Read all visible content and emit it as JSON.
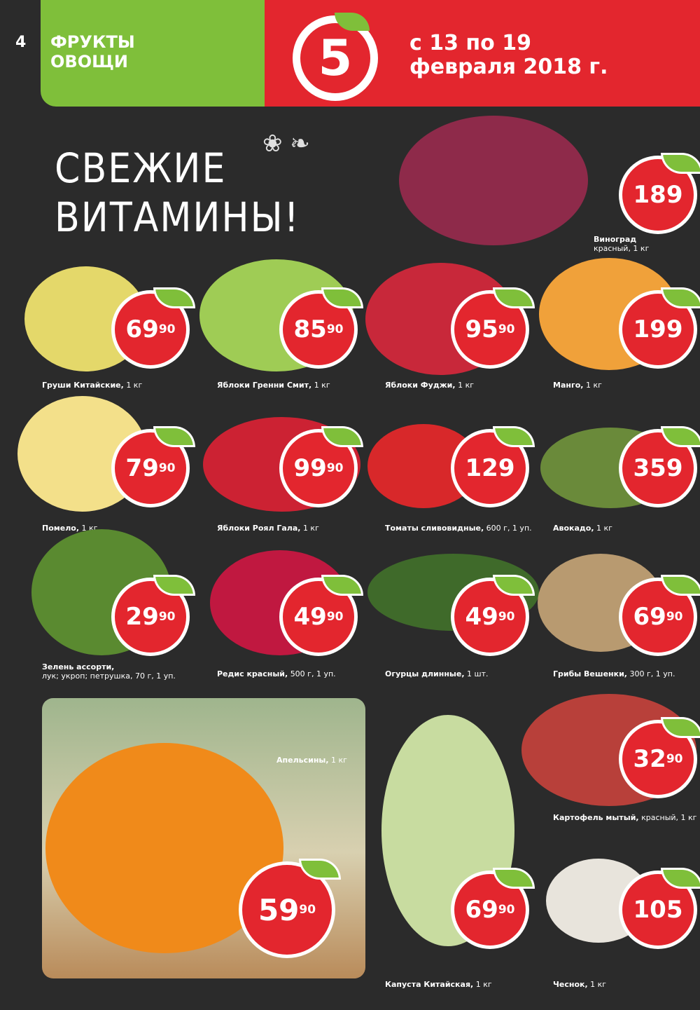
{
  "header": {
    "page_number": "4",
    "category_line1": "ФРУКТЫ",
    "category_line2": "ОВОЩИ",
    "logo_char": "5",
    "dates_line1": "с 13 по 19",
    "dates_line2": "февраля 2018 г."
  },
  "headline": {
    "line1": "СВЕЖИЕ",
    "line2": "ВИТАМИНЫ!"
  },
  "colors": {
    "brand_red": "#e3262e",
    "brand_green": "#7fbf3a",
    "background": "#2b2b2b"
  },
  "products": [
    {
      "name": "Виноград",
      "detail": "красный, 1 кг",
      "price": "189",
      "cents": ""
    },
    {
      "name": "Груши Китайские,",
      "detail": "1 кг",
      "price": "69",
      "cents": "90"
    },
    {
      "name": "Яблоки Гренни Смит,",
      "detail": "1 кг",
      "price": "85",
      "cents": "90"
    },
    {
      "name": "Яблоки Фуджи,",
      "detail": "1 кг",
      "price": "95",
      "cents": "90"
    },
    {
      "name": "Манго,",
      "detail": "1 кг",
      "price": "199",
      "cents": ""
    },
    {
      "name": "Помело,",
      "detail": "1 кг",
      "price": "79",
      "cents": "90"
    },
    {
      "name": "Яблоки Роял Гала,",
      "detail": "1 кг",
      "price": "99",
      "cents": "90"
    },
    {
      "name": "Томаты сливовидные,",
      "detail": "600 г, 1 уп.",
      "price": "129",
      "cents": ""
    },
    {
      "name": "Авокадо,",
      "detail": "1 кг",
      "price": "359",
      "cents": ""
    },
    {
      "name": "Зелень ассорти,",
      "detail": "лук; укроп; петрушка, 70 г, 1 уп.",
      "price": "29",
      "cents": "90"
    },
    {
      "name": "Редис красный,",
      "detail": "500 г, 1 уп.",
      "price": "49",
      "cents": "90"
    },
    {
      "name": "Огурцы длинные,",
      "detail": "1 шт.",
      "price": "49",
      "cents": "90"
    },
    {
      "name": "Грибы Вешенки,",
      "detail": "300 г, 1 уп.",
      "price": "69",
      "cents": "90"
    },
    {
      "name": "Апельсины,",
      "detail": "1 кг",
      "price": "59",
      "cents": "90"
    },
    {
      "name": "Картофель мытый,",
      "detail": "красный, 1 кг",
      "price": "32",
      "cents": "90"
    },
    {
      "name": "Капуста Китайская,",
      "detail": "1 кг",
      "price": "69",
      "cents": "90"
    },
    {
      "name": "Чеснок,",
      "detail": "1 кг",
      "price": "105",
      "cents": ""
    }
  ]
}
